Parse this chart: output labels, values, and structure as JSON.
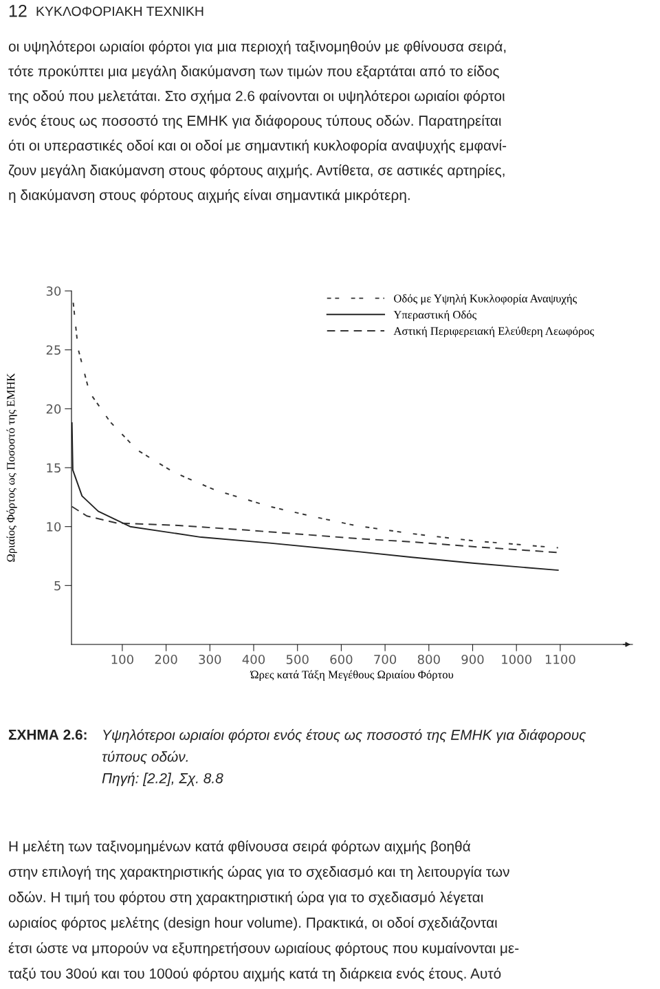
{
  "chart_data": {
    "type": "line",
    "xlabel": "Ώρες κατά Τάξη Μεγέθους Ωριαίου Φόρτου",
    "ylabel": "Ωριαίος Φόρτος ως Ποσοστό της ΕΜΗΚ",
    "xlim": [
      -16,
      1265
    ],
    "ylim": [
      0,
      30
    ],
    "xticks": [
      100,
      200,
      300,
      400,
      500,
      600,
      700,
      800,
      900,
      1000,
      1100
    ],
    "yticks": [
      5,
      10,
      15,
      20,
      25,
      30
    ],
    "grid": false,
    "legend": "top right",
    "marker": "none",
    "series": [
      {
        "name": "Οδός με Υψηλή Κυκλοφορία Αναψυχής",
        "color": "#333333",
        "line_style": "dotted",
        "x": [
          -12,
          -1,
          25,
          72,
          134,
          218,
          312,
          437,
          542,
          631,
          761,
          900,
          1095
        ],
        "values": [
          29.0,
          25.1,
          21.4,
          18.9,
          16.5,
          14.6,
          13.1,
          11.7,
          10.8,
          10.1,
          9.4,
          8.8,
          8.2
        ]
      },
      {
        "name": "Υπεραστική Οδός",
        "color": "#222222",
        "line_style": "solid",
        "x": [
          -15,
          -13,
          8,
          45,
          118,
          280,
          437,
          631,
          761,
          900,
          1095
        ],
        "values": [
          18.8,
          14.8,
          12.6,
          11.3,
          10.0,
          9.1,
          8.6,
          7.9,
          7.4,
          6.9,
          6.3
        ]
      },
      {
        "name": "Αστική Περιφερειακή Ελεύθερη Λεωφόρος",
        "color": "#333333",
        "line_style": "dashed",
        "x": [
          -15,
          19,
          87,
          228,
          385,
          631,
          761,
          900,
          1095
        ],
        "values": [
          11.7,
          10.9,
          10.3,
          10.1,
          9.7,
          9.0,
          8.7,
          8.3,
          7.8
        ]
      }
    ],
    "annotations": [
      "12",
      "ΚΥΚΛΟΦΟΡΙΑΚΗ ΤΕΧΝΙΚΗ",
      "οι υψηλότεροι ωριαίοι φόρτοι για μια περιοχή ταξινομηθούν με φθίνουσα σειρά,",
      "τότε προκύπτει μια μεγάλη διακύμανση των τιμών που εξαρτάται από το είδος",
      "της οδού που μελετάται. Στο σχήμα 2.6 φαίνονται οι υψηλότεροι ωριαίοι φόρτοι",
      "ενός έτους ως ποσοστό της ΕΜΗΚ για διάφορους τύπους οδών. Παρατηρείται",
      "ότι οι υπεραστικές οδοί και οι οδοί με σημαντική κυκλοφορία αναψυχής εμφανί-",
      "ζουν μεγάλη διακύμανση στους φόρτους αιχμής. Αντίθετα, σε αστικές αρτηρίες,",
      "η διακύμανση στους φόρτους αιχμής είναι σημαντικά μικρότερη.",
      "ΣΧΗΜΑ 2.6:",
      "Υψηλότεροι ωριαίοι φόρτοι ενός έτους ως ποσοστό της ΕΜΗΚ για διάφορους",
      "τύπους οδών.",
      "Πηγή: [2.2], Σχ. 8.8",
      "Η μελέτη των ταξινομημένων κατά φθίνουσα σειρά φόρτων αιχμής βοηθά",
      "στην επιλογή της χαρακτηριστικής ώρας για το σχεδιασμό και τη λειτουργία των",
      "οδών. Η τιμή του φόρτου στη χαρακτηριστική ώρα για το σχεδιασμό λέγεται",
      "ωριαίος φόρτος μελέτης (design hour volume). Πρακτικά, οι οδοί σχεδιάζονται",
      "έτσι ώστε να μπορούν να εξυπηρετήσουν ωριαίους φόρτους που κυμαίνονται με-",
      "ταξύ του 30ού και του 100ού φόρτου αιχμής κατά τη διάρκεια ενός έτους. Αυτό"
    ]
  }
}
